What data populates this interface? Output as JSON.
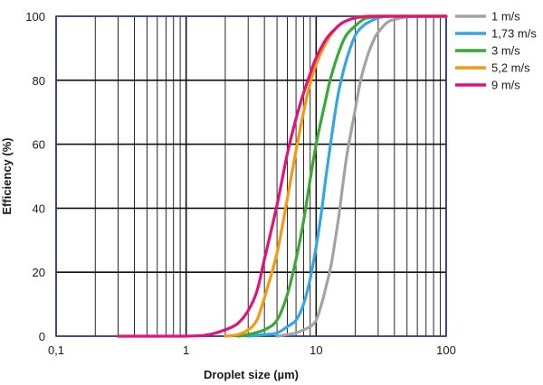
{
  "chart_data": {
    "type": "line",
    "xscale": "log",
    "xlim": [
      0.1,
      100
    ],
    "ylim": [
      0,
      100
    ],
    "xlabel": "Droplet size (µm)",
    "ylabel": "Efficiency (%)",
    "xticks": [
      0.1,
      1,
      10,
      100
    ],
    "xtick_labels": [
      "0,1",
      "1",
      "10",
      "100"
    ],
    "yticks": [
      0,
      20,
      40,
      60,
      80,
      100
    ],
    "ytick_labels": [
      "0",
      "20",
      "40",
      "60",
      "80",
      "100"
    ],
    "grid": true,
    "legend": "top-right",
    "series": [
      {
        "name": "1 m/s",
        "color": "#a3a3a3",
        "x": [
          5,
          6,
          7,
          8,
          9,
          10,
          11,
          12,
          13,
          14,
          15,
          16,
          17,
          18,
          20,
          22,
          25,
          28,
          30,
          35,
          40,
          50,
          60,
          70,
          100
        ],
        "y": [
          0,
          0.5,
          1,
          2,
          3,
          5,
          10,
          16,
          22,
          30,
          38,
          47,
          55,
          61,
          71,
          80,
          88,
          93,
          95,
          98,
          99,
          99.8,
          100,
          100,
          100
        ]
      },
      {
        "name": "1,73 m/s",
        "color": "#33a7df",
        "x": [
          3,
          4,
          5,
          6,
          7,
          8,
          9,
          10,
          11,
          12,
          13,
          14,
          15,
          17,
          20,
          23,
          25,
          30,
          35,
          40,
          50,
          60,
          100
        ],
        "y": [
          0,
          0.5,
          1,
          3,
          5,
          10,
          18,
          28,
          39,
          51,
          61,
          70,
          77,
          86,
          94,
          97,
          98,
          99.5,
          100,
          100,
          100,
          100,
          100
        ]
      },
      {
        "name": "3 m/s",
        "color": "#3aa935",
        "x": [
          2.5,
          3,
          4,
          5,
          6,
          7,
          8,
          9,
          10,
          11,
          12,
          13,
          15,
          17,
          20,
          23,
          25,
          30,
          35,
          40,
          50,
          100
        ],
        "y": [
          0,
          0.5,
          2,
          5,
          13,
          24,
          36,
          49,
          60,
          68,
          75,
          81,
          89,
          94,
          97,
          99,
          99.5,
          100,
          100,
          100,
          100,
          100
        ]
      },
      {
        "name": "5,2 m/s",
        "color": "#f59a0c",
        "x": [
          2,
          2.5,
          3,
          3.5,
          4,
          5,
          6,
          7,
          8,
          9,
          10,
          12,
          14,
          16,
          18,
          20,
          25,
          30,
          40,
          50,
          100
        ],
        "y": [
          0,
          0.5,
          2,
          5,
          12,
          26,
          43,
          58,
          70,
          79,
          85,
          92,
          96,
          98,
          99,
          99.5,
          100,
          100,
          100,
          100,
          100
        ]
      },
      {
        "name": "9 m/s",
        "color": "#e2127a",
        "x": [
          0.3,
          1,
          1.5,
          2,
          2.5,
          3,
          3.5,
          4,
          5,
          6,
          7,
          8,
          9,
          10,
          12,
          14,
          16,
          20,
          25,
          30,
          50,
          100
        ],
        "y": [
          0,
          0,
          0.5,
          2,
          4,
          8,
          14,
          24,
          41,
          57,
          68,
          76,
          82,
          87,
          93,
          96,
          98,
          99.5,
          100,
          100,
          100,
          100
        ]
      }
    ]
  }
}
